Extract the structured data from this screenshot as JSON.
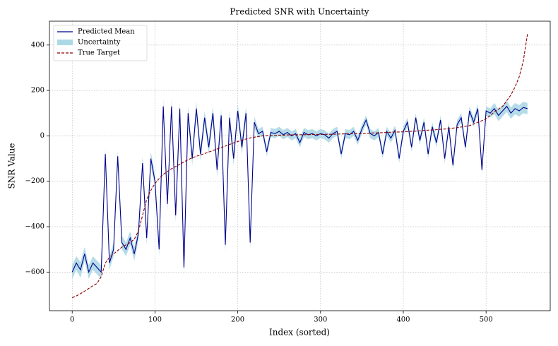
{
  "chart_data": {
    "type": "line",
    "title": "Predicted SNR with Uncertainty",
    "xlabel": "Index (sorted)",
    "ylabel": "SNR Value",
    "x": [
      0,
      5,
      10,
      15,
      20,
      25,
      30,
      35,
      40,
      45,
      50,
      55,
      60,
      65,
      70,
      75,
      80,
      85,
      90,
      95,
      100,
      105,
      110,
      115,
      120,
      125,
      130,
      135,
      140,
      145,
      150,
      155,
      160,
      165,
      170,
      175,
      180,
      185,
      190,
      195,
      200,
      205,
      210,
      215,
      220,
      225,
      230,
      235,
      240,
      245,
      250,
      255,
      260,
      265,
      270,
      275,
      280,
      285,
      290,
      295,
      300,
      305,
      310,
      315,
      320,
      325,
      330,
      335,
      340,
      345,
      350,
      355,
      360,
      365,
      370,
      375,
      380,
      385,
      390,
      395,
      400,
      405,
      410,
      415,
      420,
      425,
      430,
      435,
      440,
      445,
      450,
      455,
      460,
      465,
      470,
      475,
      480,
      485,
      490,
      495,
      500,
      505,
      510,
      515,
      520,
      525,
      530,
      535,
      540,
      545,
      550
    ],
    "series": [
      {
        "name": "Predicted Mean",
        "kind": "line",
        "color": "#00008b",
        "values": [
          -600,
          -560,
          -590,
          -520,
          -600,
          -560,
          -580,
          -600,
          -80,
          -560,
          -500,
          -90,
          -470,
          -500,
          -450,
          -520,
          -430,
          -120,
          -450,
          -100,
          -200,
          -500,
          130,
          -300,
          130,
          -350,
          120,
          -580,
          100,
          -100,
          120,
          -80,
          80,
          -50,
          100,
          -150,
          90,
          -480,
          80,
          -100,
          110,
          -50,
          100,
          -470,
          60,
          10,
          20,
          -70,
          15,
          10,
          20,
          5,
          15,
          0,
          10,
          -30,
          15,
          5,
          10,
          0,
          10,
          5,
          -10,
          10,
          20,
          -80,
          10,
          5,
          20,
          -20,
          30,
          70,
          10,
          0,
          15,
          -80,
          20,
          -10,
          25,
          -100,
          20,
          60,
          -50,
          80,
          -20,
          60,
          -80,
          40,
          -30,
          70,
          -100,
          40,
          -130,
          50,
          80,
          -50,
          110,
          60,
          120,
          -150,
          110,
          100,
          120,
          90,
          110,
          130,
          100,
          120,
          110,
          125,
          120
        ]
      },
      {
        "name": "Uncertainty",
        "kind": "band",
        "color": "#add8e6",
        "values": [
          30,
          30,
          35,
          30,
          30,
          30,
          30,
          30,
          25,
          30,
          30,
          25,
          30,
          30,
          30,
          30,
          30,
          30,
          30,
          30,
          30,
          30,
          30,
          30,
          30,
          30,
          30,
          30,
          30,
          30,
          30,
          30,
          30,
          30,
          30,
          30,
          30,
          30,
          30,
          30,
          30,
          30,
          30,
          30,
          25,
          20,
          20,
          20,
          20,
          20,
          20,
          20,
          20,
          20,
          20,
          20,
          20,
          20,
          20,
          20,
          20,
          20,
          20,
          20,
          20,
          20,
          20,
          20,
          20,
          20,
          20,
          20,
          20,
          20,
          20,
          20,
          20,
          20,
          20,
          20,
          20,
          20,
          20,
          20,
          20,
          20,
          20,
          20,
          20,
          20,
          20,
          20,
          20,
          20,
          20,
          20,
          20,
          20,
          20,
          20,
          20,
          20,
          25,
          25,
          25,
          25,
          25,
          25,
          25,
          25,
          25
        ]
      },
      {
        "name": "True Target",
        "kind": "dashed",
        "color": "#8b0000",
        "values": [
          -713,
          -705,
          -695,
          -684,
          -672,
          -660,
          -650,
          -620,
          -560,
          -535,
          -520,
          -505,
          -490,
          -480,
          -470,
          -455,
          -420,
          -350,
          -280,
          -240,
          -210,
          -188,
          -170,
          -157,
          -145,
          -135,
          -125,
          -115,
          -105,
          -97,
          -90,
          -84,
          -78,
          -71,
          -65,
          -58,
          -52,
          -45,
          -38,
          -31,
          -25,
          -19,
          -14,
          -9,
          -6,
          -3,
          0,
          1,
          2,
          2,
          3,
          3,
          4,
          4,
          4,
          5,
          5,
          5,
          6,
          6,
          6,
          7,
          7,
          7,
          8,
          8,
          9,
          9,
          9,
          10,
          10,
          11,
          12,
          13,
          13,
          14,
          15,
          16,
          17,
          17,
          18,
          19,
          20,
          21,
          22,
          24,
          25,
          26,
          27,
          29,
          30,
          32,
          34,
          36,
          39,
          42,
          45,
          52,
          60,
          67,
          75,
          90,
          105,
          118,
          130,
          155,
          180,
          215,
          260,
          330,
          448
        ]
      }
    ],
    "xlim": [
      -27.5,
      577.5
    ],
    "ylim": [
      -770,
      505
    ],
    "xticks": [
      0,
      100,
      200,
      300,
      400,
      500
    ],
    "yticks": [
      {
        "value": -600,
        "label": "−600"
      },
      {
        "value": -400,
        "label": "−400"
      },
      {
        "value": -200,
        "label": "−200"
      },
      0,
      200,
      400
    ],
    "grid": true,
    "legend": "upper left"
  }
}
